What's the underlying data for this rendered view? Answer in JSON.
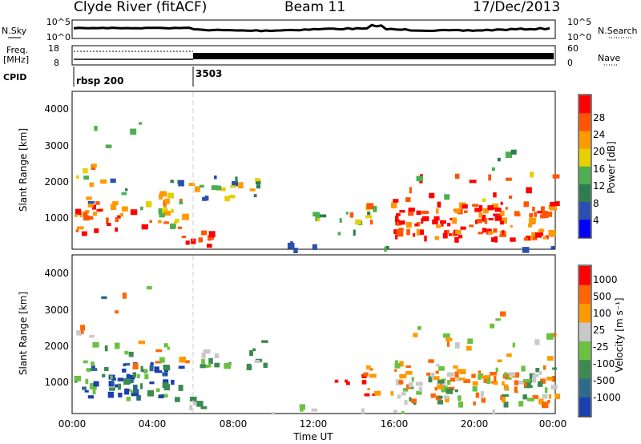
{
  "header": {
    "station": "Clyde River (fitACF)",
    "beam": "Beam 11",
    "date": "17/Dec/2013"
  },
  "summary": {
    "nsky_label": "N.Sky",
    "nsky_ticks": [
      "10^5",
      "10^0"
    ],
    "nsearch_label": "N.Search",
    "nsearch_ticks": [
      "10^5",
      "10^0"
    ],
    "freq_label_1": "Freq.",
    "freq_label_2": "[MHz]",
    "freq_ticks": [
      "18",
      "8"
    ],
    "nave_label": "Nave",
    "nave_ticks": [
      "60",
      "0"
    ],
    "cpid_label": "CPID",
    "cpid_segments": [
      {
        "label": "rbsp 200",
        "start_hour": 0
      },
      {
        "label": "3503",
        "start_hour": 6
      }
    ]
  },
  "chart_data": [
    {
      "type": "heatmap",
      "ylabel": "Slant Range [km]",
      "y_ticks": [
        "4000",
        "3000",
        "2000",
        "1000"
      ],
      "ylim": [
        180,
        4500
      ],
      "xlim": [
        0,
        24
      ],
      "colorbar": {
        "label": "Power [dB]",
        "ticks": [
          "28",
          "24",
          "20",
          "16",
          "12",
          "8",
          "4"
        ],
        "colors": [
          "#0000ff",
          "#2a4fb0",
          "#2e7d4f",
          "#4caf50",
          "#e6d000",
          "#ff9900",
          "#ff5500",
          "#ff0000"
        ]
      }
    },
    {
      "type": "heatmap",
      "ylabel": "Slant Range [km]",
      "y_ticks": [
        "4000",
        "3000",
        "2000",
        "1000"
      ],
      "ylim": [
        180,
        4500
      ],
      "xlim": [
        0,
        24
      ],
      "xlabel": "Time UT",
      "x_ticks": [
        "00:00",
        "04:00",
        "08:00",
        "12:00",
        "16:00",
        "20:00",
        "00:00"
      ],
      "colorbar": {
        "label": "Velocity [m s⁻¹]",
        "ticks": [
          "1000",
          "500",
          "100",
          "25",
          "-25",
          "-100",
          "-500",
          "-1000"
        ],
        "colors": [
          "#1a3fb0",
          "#2f6a8a",
          "#3d8a50",
          "#6cc040",
          "#c8c8c8",
          "#ff9900",
          "#ff6600",
          "#ff0000"
        ]
      }
    }
  ]
}
